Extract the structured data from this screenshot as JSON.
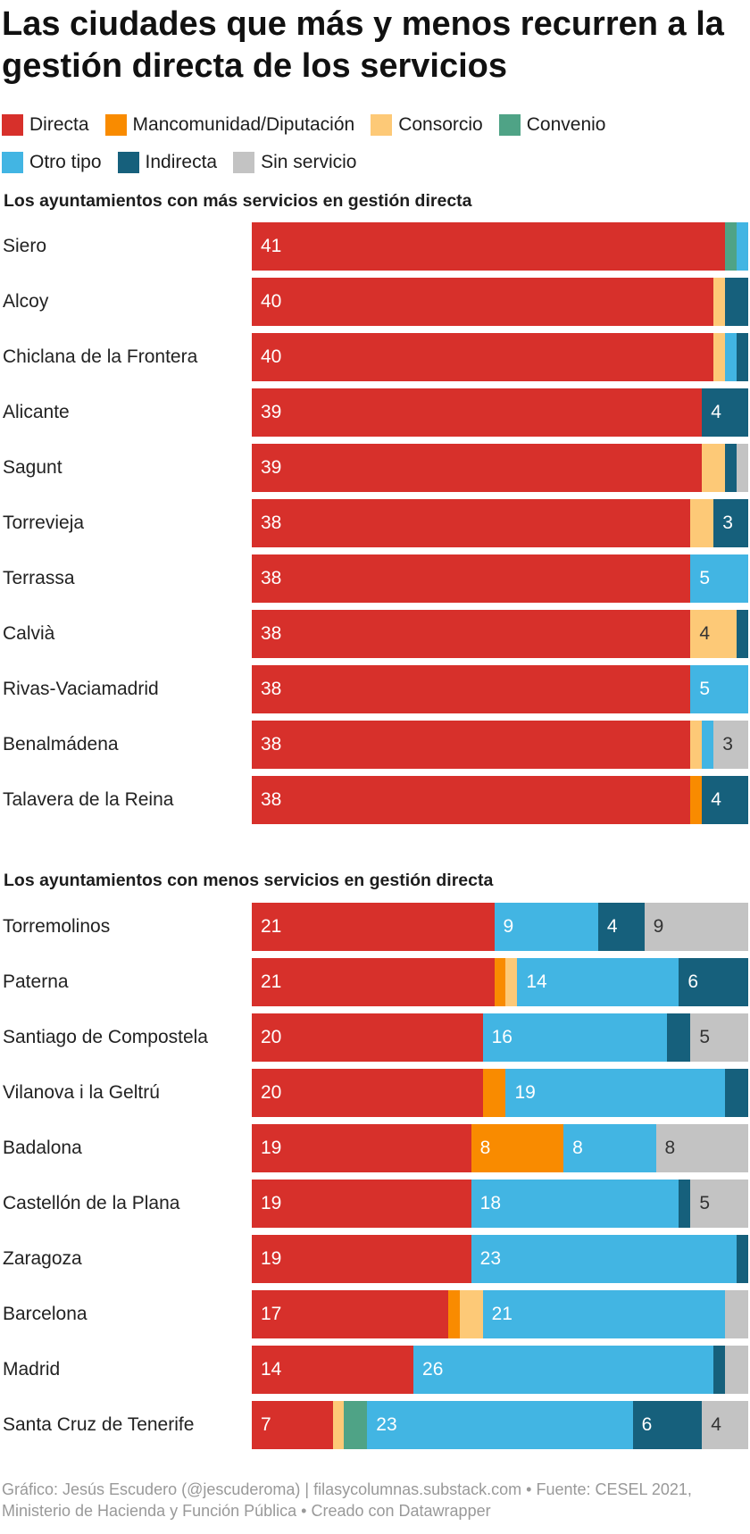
{
  "title": "Las ciudades que más y menos recurren a la gestión directa de los servicios",
  "legend": [
    {
      "key": "directa",
      "label": "Directa",
      "color": "#d7302b",
      "text": "#ffffff"
    },
    {
      "key": "manc",
      "label": "Mancomunidad/Diputación",
      "color": "#f98b00",
      "text": "#ffffff"
    },
    {
      "key": "consorcio",
      "label": "Consorcio",
      "color": "#fdc977",
      "text": "#333333"
    },
    {
      "key": "convenio",
      "label": "Convenio",
      "color": "#4fa386",
      "text": "#ffffff"
    },
    {
      "key": "otro",
      "label": "Otro tipo",
      "color": "#42b5e3",
      "text": "#ffffff"
    },
    {
      "key": "indirecta",
      "label": "Indirecta",
      "color": "#16607c",
      "text": "#ffffff"
    },
    {
      "key": "sin",
      "label": "Sin servicio",
      "color": "#c3c3c3",
      "text": "#333333"
    }
  ],
  "footer": "Gráfico: Jesús Escudero (@jescuderoma) | filasycolumnas.substack.com • Fuente: CESEL 2021, Ministerio de Hacienda y Función Pública • Creado con Datawrapper",
  "chart_data": [
    {
      "type": "bar",
      "stacked": true,
      "orientation": "horizontal",
      "title": "Los ayuntamientos con más servicios en gestión directa",
      "total": 43,
      "series_order": [
        "directa",
        "manc",
        "consorcio",
        "convenio",
        "otro",
        "indirecta",
        "sin"
      ],
      "rows": [
        {
          "name": "Siero",
          "values": [
            41,
            0,
            0,
            1,
            1,
            0,
            0
          ]
        },
        {
          "name": "Alcoy",
          "values": [
            40,
            0,
            1,
            0,
            0,
            2,
            0
          ]
        },
        {
          "name": "Chiclana de la Frontera",
          "values": [
            40,
            0,
            1,
            0,
            1,
            1,
            0
          ]
        },
        {
          "name": "Alicante",
          "values": [
            39,
            0,
            0,
            0,
            0,
            4,
            0
          ]
        },
        {
          "name": "Sagunt",
          "values": [
            39,
            0,
            2,
            0,
            0,
            1,
            1
          ]
        },
        {
          "name": "Torrevieja",
          "values": [
            38,
            0,
            2,
            0,
            0,
            3,
            0
          ]
        },
        {
          "name": "Terrassa",
          "values": [
            38,
            0,
            0,
            0,
            5,
            0,
            0
          ]
        },
        {
          "name": "Calvià",
          "values": [
            38,
            0,
            4,
            0,
            0,
            1,
            0
          ]
        },
        {
          "name": "Rivas-Vaciamadrid",
          "values": [
            38,
            0,
            0,
            0,
            5,
            0,
            0
          ]
        },
        {
          "name": "Benalmádena",
          "values": [
            38,
            0,
            1,
            0,
            1,
            0,
            3
          ]
        },
        {
          "name": "Talavera de la Reina",
          "values": [
            38,
            1,
            0,
            0,
            0,
            4,
            0
          ]
        }
      ]
    },
    {
      "type": "bar",
      "stacked": true,
      "orientation": "horizontal",
      "title": "Los ayuntamientos con menos servicios en gestión directa",
      "total": 43,
      "series_order": [
        "directa",
        "manc",
        "consorcio",
        "convenio",
        "otro",
        "indirecta",
        "sin"
      ],
      "rows": [
        {
          "name": "Torremolinos",
          "values": [
            21,
            0,
            0,
            0,
            9,
            4,
            9
          ]
        },
        {
          "name": "Paterna",
          "values": [
            21,
            1,
            1,
            0,
            14,
            6,
            0
          ]
        },
        {
          "name": "Santiago de Compostela",
          "values": [
            20,
            0,
            0,
            0,
            16,
            2,
            5
          ]
        },
        {
          "name": "Vilanova i la Geltrú",
          "values": [
            20,
            2,
            0,
            0,
            19,
            2,
            0
          ]
        },
        {
          "name": "Badalona",
          "values": [
            19,
            8,
            0,
            0,
            8,
            0,
            8
          ]
        },
        {
          "name": "Castellón de la Plana",
          "values": [
            19,
            0,
            0,
            0,
            18,
            1,
            5
          ]
        },
        {
          "name": "Zaragoza",
          "values": [
            19,
            0,
            0,
            0,
            23,
            1,
            0
          ]
        },
        {
          "name": "Barcelona",
          "values": [
            17,
            1,
            2,
            0,
            21,
            0,
            2
          ]
        },
        {
          "name": "Madrid",
          "values": [
            14,
            0,
            0,
            0,
            26,
            1,
            2
          ]
        },
        {
          "name": "Santa Cruz de Tenerife",
          "values": [
            7,
            0,
            1,
            2,
            23,
            6,
            4
          ]
        }
      ]
    }
  ]
}
